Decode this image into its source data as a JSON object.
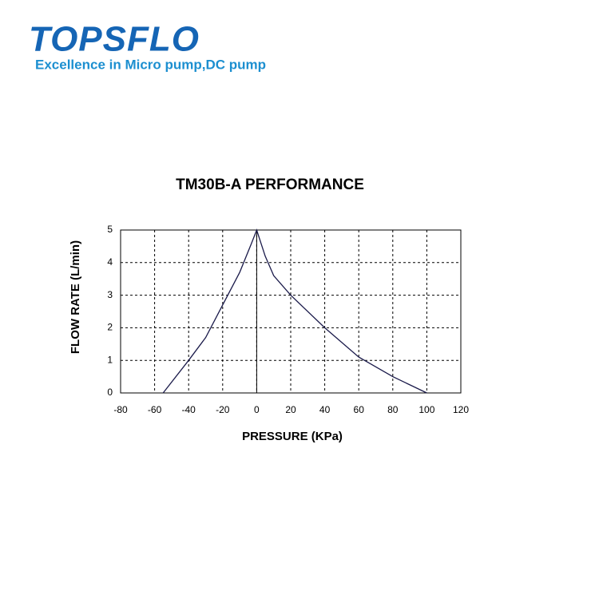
{
  "header": {
    "brand": "TOPSFLO",
    "tagline": "Excellence in Micro pump,DC pump"
  },
  "chart_data": {
    "type": "line",
    "title": "TM30B-A PERFORMANCE",
    "xlabel": "PRESSURE (KPa)",
    "ylabel": "FLOW RATE (L/min)",
    "x": [
      -55,
      -40,
      -30,
      -20,
      -10,
      -3,
      0,
      5,
      10,
      20,
      40,
      60,
      80,
      100
    ],
    "series": [
      {
        "color": "#1a1a4a",
        "values": [
          0,
          1,
          1.7,
          2.7,
          3.7,
          4.6,
          5,
          4.2,
          3.6,
          3,
          2,
          1.1,
          0.5,
          0
        ]
      }
    ],
    "xlim": [
      -80,
      120
    ],
    "xticks": [
      -80,
      -60,
      -40,
      -20,
      0,
      20,
      40,
      60,
      80,
      100,
      120
    ],
    "ylim": [
      0,
      5
    ],
    "yticks": [
      0,
      1,
      2,
      3,
      4,
      5
    ],
    "grid": true
  }
}
